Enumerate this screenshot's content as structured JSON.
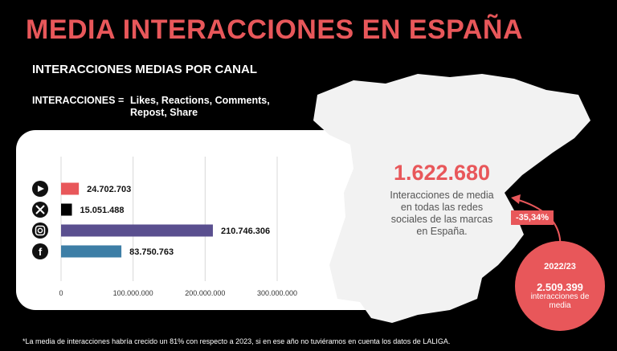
{
  "header": {
    "title": "MEDIA INTERACCIONES EN ESPAÑA",
    "subtitle": "INTERACCIONES MEDIAS POR CANAL",
    "definition_label": "INTERACCIONES =",
    "definition_text": "Likes, Reactions, Comments, Repost, Share"
  },
  "chart_data": {
    "type": "bar",
    "orientation": "horizontal",
    "categories": [
      "YouTube",
      "X",
      "Instagram",
      "Facebook"
    ],
    "values": [
      24702703,
      15051488,
      210746306,
      83750763
    ],
    "value_labels": [
      "24.702.703",
      "15.051.488",
      "210.746.306",
      "83.750.763"
    ],
    "bar_colors": [
      "#e8575a",
      "#000000",
      "#5a4f8f",
      "#3d7ea6"
    ],
    "icons": [
      "youtube-icon",
      "x-icon",
      "instagram-icon",
      "facebook-icon"
    ],
    "xlim": [
      0,
      300000000
    ],
    "xticks": [
      0,
      100000000,
      200000000,
      300000000
    ],
    "xtick_labels": [
      "0",
      "100.000.000",
      "200.000.000",
      "300.000.000"
    ],
    "grid": true
  },
  "summary": {
    "total": "1.622.680",
    "total_desc": "Interacciones de media en todas las redes sociales de las marcas en España.",
    "change": "-35,34%",
    "prev_year": "2022/23",
    "prev_value": "2.509.399",
    "prev_desc": "interacciones de media"
  },
  "footnote": "*La media de interacciones habría crecido un 81% con respecto a 2023, si en ese año no tuviéramos en cuenta los datos de LALIGA.",
  "colors": {
    "accent": "#e8575a",
    "map": "#f2f2f2",
    "background": "#000000"
  }
}
